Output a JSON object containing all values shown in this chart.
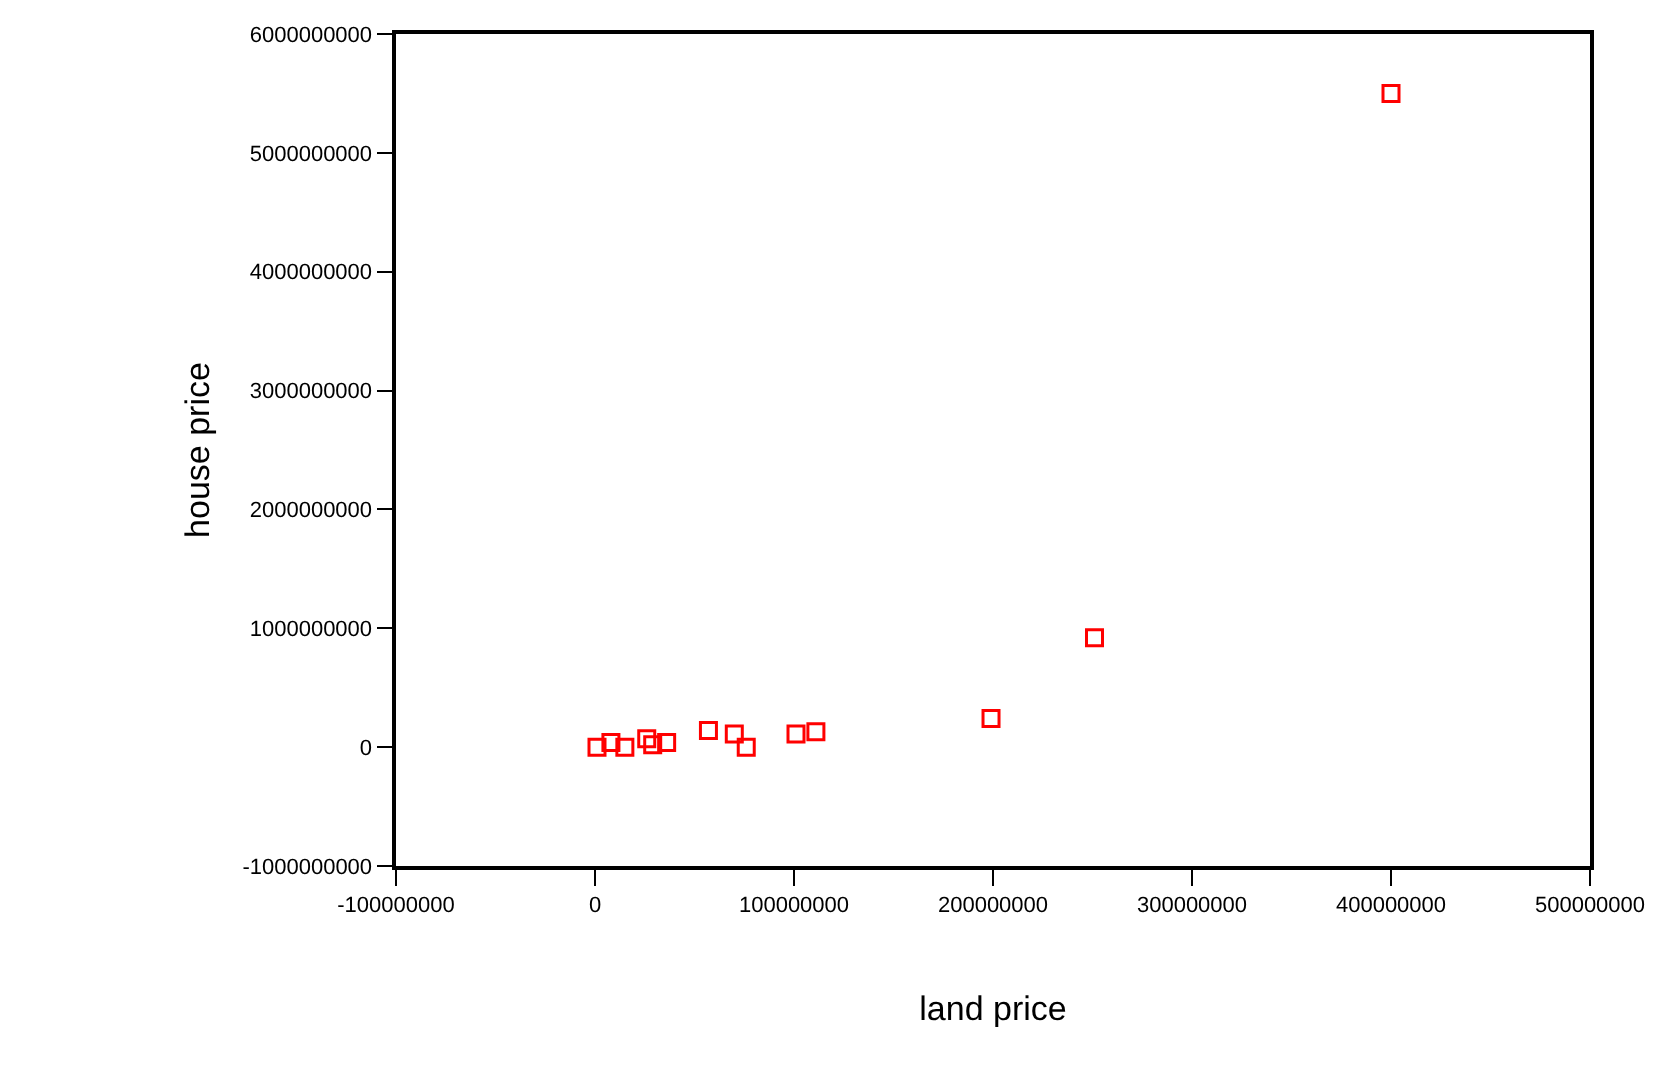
{
  "chart_data": {
    "type": "scatter",
    "xlabel": "land price",
    "ylabel": "house price",
    "x": [
      1000000,
      8000000,
      15000000,
      26000000,
      29000000,
      36000000,
      57000000,
      70000000,
      76000000,
      101000000,
      111000000,
      199000000,
      251000000,
      400000000
    ],
    "series": [
      {
        "color": "#ff0000",
        "values": [
          0,
          40000000,
          0,
          70000000,
          20000000,
          40000000,
          140000000,
          110000000,
          0,
          110000000,
          130000000,
          240000000,
          920000000,
          5500000000
        ]
      }
    ],
    "xlim": [
      -100000000,
      500000000
    ],
    "xticks": [
      -100000000,
      0,
      100000000,
      200000000,
      300000000,
      400000000,
      500000000
    ],
    "ylim": [
      -1000000000,
      6000000000
    ],
    "yticks": [
      -1000000000,
      0,
      1000000000,
      2000000000,
      3000000000,
      4000000000,
      5000000000,
      6000000000
    ],
    "grid": false,
    "marker": "square"
  }
}
